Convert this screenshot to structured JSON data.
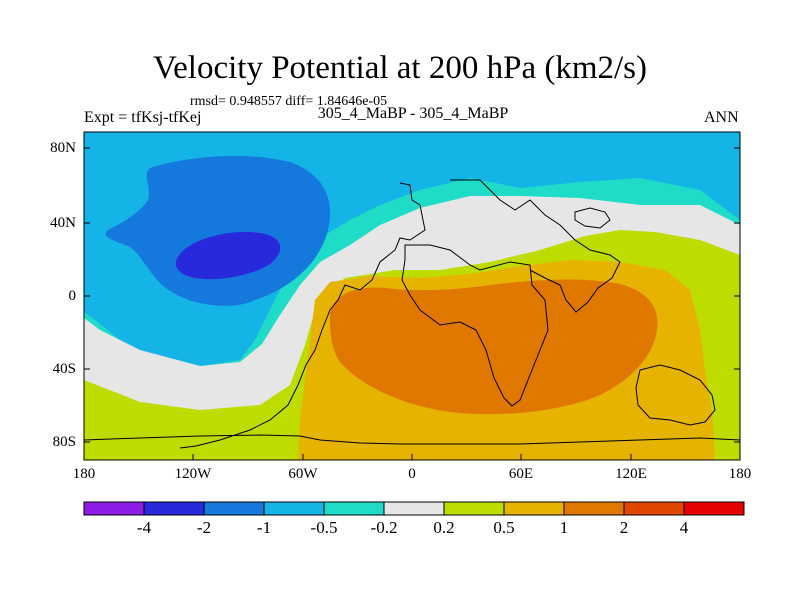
{
  "title": "Velocity Potential at 200 hPa (km2/s)",
  "stats": "rmsd= 0.948557 diff= 1.84646e-05",
  "experiment": "Expt = tfKsj-tfKej",
  "cases": "305_4_MaBP - 305_4_MaBP",
  "period": "ANN",
  "lat_labels": [
    "80N",
    "40N",
    "0",
    "40S",
    "80S"
  ],
  "lon_labels": [
    "180",
    "120W",
    "60W",
    "0",
    "60E",
    "120E",
    "180"
  ],
  "colorbar": {
    "levels": [
      "-4",
      "-2",
      "-1",
      "-0.5",
      "-0.2",
      "0.2",
      "0.5",
      "1",
      "2",
      "4"
    ],
    "colors": [
      "#8c1ce6",
      "#2828dc",
      "#1478dc",
      "#14b4e6",
      "#1edcc8",
      "#e6e6e6",
      "#bedc00",
      "#e6b400",
      "#e07800",
      "#e04600",
      "#e60000"
    ]
  },
  "fill_colors": {
    "m2": "#1478dc",
    "m1": "#14b4e6",
    "m05": "#1edcc8",
    "zero": "#e6e6e6",
    "p02": "#bedc00",
    "p05": "#e6b400",
    "p1": "#e07800",
    "m4": "#2828dc"
  }
}
